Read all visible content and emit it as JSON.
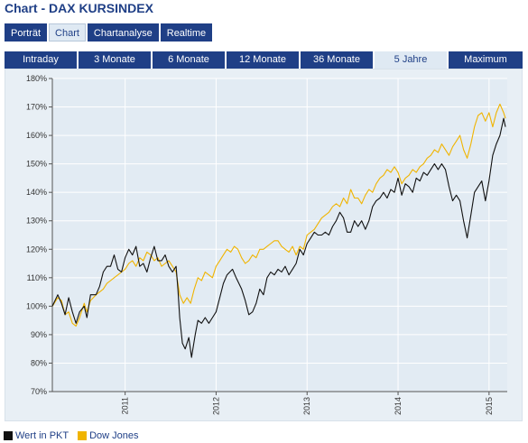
{
  "page": {
    "title": "Chart - DAX KURSINDEX"
  },
  "tabs_main": [
    {
      "label": "Porträt",
      "active": false
    },
    {
      "label": "Chart",
      "active": true
    },
    {
      "label": "Chartanalyse",
      "active": false
    },
    {
      "label": "Realtime",
      "active": false
    }
  ],
  "tabs_range": [
    {
      "label": "Intraday",
      "active": false
    },
    {
      "label": "3 Monate",
      "active": false
    },
    {
      "label": "6 Monate",
      "active": false
    },
    {
      "label": "12 Monate",
      "active": false
    },
    {
      "label": "36 Monate",
      "active": false
    },
    {
      "label": "5 Jahre",
      "active": true
    },
    {
      "label": "Maximum",
      "active": false
    }
  ],
  "legend": [
    {
      "label": "Wert in PKT",
      "color": "#111111"
    },
    {
      "label": "Dow Jones",
      "color": "#f0b400"
    }
  ],
  "chart_data": {
    "type": "line",
    "y_ticks": [
      "70%",
      "80%",
      "90%",
      "100%",
      "110%",
      "120%",
      "130%",
      "140%",
      "150%",
      "160%",
      "170%",
      "180%"
    ],
    "ylim": [
      70,
      180
    ],
    "xlim": [
      2010.2,
      2015.2
    ],
    "x_ticks": [
      {
        "label": "2011",
        "value": 2011
      },
      {
        "label": "2012",
        "value": 2012
      },
      {
        "label": "2013",
        "value": 2013
      },
      {
        "label": "2014",
        "value": 2014
      },
      {
        "label": "2015",
        "value": 2015
      }
    ],
    "grid": true,
    "series": [
      {
        "name": "Wert in PKT",
        "color": "#111111",
        "points": [
          [
            2010.2,
            100
          ],
          [
            2010.26,
            104
          ],
          [
            2010.3,
            101
          ],
          [
            2010.34,
            97
          ],
          [
            2010.38,
            103
          ],
          [
            2010.42,
            98
          ],
          [
            2010.46,
            94
          ],
          [
            2010.5,
            98
          ],
          [
            2010.55,
            100
          ],
          [
            2010.58,
            96
          ],
          [
            2010.62,
            104
          ],
          [
            2010.68,
            104
          ],
          [
            2010.72,
            107
          ],
          [
            2010.76,
            112
          ],
          [
            2010.8,
            114
          ],
          [
            2010.84,
            114
          ],
          [
            2010.88,
            118
          ],
          [
            2010.92,
            113
          ],
          [
            2010.96,
            112
          ],
          [
            2011.0,
            117
          ],
          [
            2011.04,
            120
          ],
          [
            2011.08,
            118
          ],
          [
            2011.12,
            121
          ],
          [
            2011.16,
            114
          ],
          [
            2011.2,
            115
          ],
          [
            2011.24,
            112
          ],
          [
            2011.28,
            117
          ],
          [
            2011.32,
            121
          ],
          [
            2011.36,
            116
          ],
          [
            2011.4,
            116
          ],
          [
            2011.44,
            118
          ],
          [
            2011.48,
            114
          ],
          [
            2011.52,
            112
          ],
          [
            2011.56,
            114
          ],
          [
            2011.58,
            106
          ],
          [
            2011.6,
            96
          ],
          [
            2011.63,
            87
          ],
          [
            2011.66,
            85
          ],
          [
            2011.7,
            89
          ],
          [
            2011.73,
            82
          ],
          [
            2011.77,
            90
          ],
          [
            2011.8,
            95
          ],
          [
            2011.84,
            94
          ],
          [
            2011.88,
            96
          ],
          [
            2011.92,
            94
          ],
          [
            2011.96,
            96
          ],
          [
            2012.0,
            98
          ],
          [
            2012.04,
            103
          ],
          [
            2012.08,
            108
          ],
          [
            2012.12,
            111
          ],
          [
            2012.18,
            113
          ],
          [
            2012.22,
            110
          ],
          [
            2012.28,
            106
          ],
          [
            2012.32,
            102
          ],
          [
            2012.36,
            97
          ],
          [
            2012.4,
            98
          ],
          [
            2012.44,
            101
          ],
          [
            2012.48,
            106
          ],
          [
            2012.52,
            104
          ],
          [
            2012.56,
            110
          ],
          [
            2012.6,
            112
          ],
          [
            2012.64,
            111
          ],
          [
            2012.68,
            113
          ],
          [
            2012.72,
            112
          ],
          [
            2012.76,
            114
          ],
          [
            2012.8,
            111
          ],
          [
            2012.84,
            113
          ],
          [
            2012.88,
            115
          ],
          [
            2012.92,
            120
          ],
          [
            2012.96,
            118
          ],
          [
            2013.0,
            122
          ],
          [
            2013.04,
            124
          ],
          [
            2013.08,
            126
          ],
          [
            2013.12,
            125
          ],
          [
            2013.16,
            125
          ],
          [
            2013.2,
            126
          ],
          [
            2013.24,
            125
          ],
          [
            2013.28,
            128
          ],
          [
            2013.32,
            130
          ],
          [
            2013.36,
            133
          ],
          [
            2013.4,
            131
          ],
          [
            2013.44,
            126
          ],
          [
            2013.48,
            126
          ],
          [
            2013.52,
            130
          ],
          [
            2013.56,
            128
          ],
          [
            2013.6,
            130
          ],
          [
            2013.64,
            127
          ],
          [
            2013.68,
            130
          ],
          [
            2013.72,
            135
          ],
          [
            2013.76,
            137
          ],
          [
            2013.8,
            138
          ],
          [
            2013.84,
            140
          ],
          [
            2013.88,
            138
          ],
          [
            2013.92,
            141
          ],
          [
            2013.96,
            140
          ],
          [
            2014.0,
            145
          ],
          [
            2014.04,
            139
          ],
          [
            2014.08,
            143
          ],
          [
            2014.12,
            142
          ],
          [
            2014.16,
            140
          ],
          [
            2014.2,
            145
          ],
          [
            2014.24,
            144
          ],
          [
            2014.28,
            147
          ],
          [
            2014.32,
            146
          ],
          [
            2014.36,
            148
          ],
          [
            2014.4,
            150
          ],
          [
            2014.44,
            148
          ],
          [
            2014.48,
            150
          ],
          [
            2014.52,
            148
          ],
          [
            2014.56,
            142
          ],
          [
            2014.6,
            137
          ],
          [
            2014.64,
            139
          ],
          [
            2014.68,
            137
          ],
          [
            2014.72,
            130
          ],
          [
            2014.76,
            124
          ],
          [
            2014.8,
            132
          ],
          [
            2014.84,
            140
          ],
          [
            2014.88,
            142
          ],
          [
            2014.92,
            144
          ],
          [
            2014.96,
            137
          ],
          [
            2015.0,
            144
          ],
          [
            2015.04,
            153
          ],
          [
            2015.08,
            157
          ],
          [
            2015.12,
            160
          ],
          [
            2015.16,
            166
          ],
          [
            2015.18,
            163
          ]
        ]
      },
      {
        "name": "Dow Jones",
        "color": "#f0b400",
        "points": [
          [
            2010.2,
            100
          ],
          [
            2010.26,
            103
          ],
          [
            2010.3,
            102
          ],
          [
            2010.34,
            97
          ],
          [
            2010.38,
            98
          ],
          [
            2010.42,
            94
          ],
          [
            2010.46,
            93
          ],
          [
            2010.5,
            96
          ],
          [
            2010.55,
            101
          ],
          [
            2010.58,
            98
          ],
          [
            2010.62,
            102
          ],
          [
            2010.68,
            104
          ],
          [
            2010.72,
            105
          ],
          [
            2010.76,
            106
          ],
          [
            2010.8,
            108
          ],
          [
            2010.84,
            109
          ],
          [
            2010.88,
            110
          ],
          [
            2010.92,
            111
          ],
          [
            2010.96,
            112
          ],
          [
            2011.0,
            113
          ],
          [
            2011.04,
            115
          ],
          [
            2011.08,
            116
          ],
          [
            2011.12,
            114
          ],
          [
            2011.16,
            117
          ],
          [
            2011.2,
            116
          ],
          [
            2011.24,
            119
          ],
          [
            2011.28,
            118
          ],
          [
            2011.32,
            116
          ],
          [
            2011.36,
            117
          ],
          [
            2011.4,
            114
          ],
          [
            2011.44,
            115
          ],
          [
            2011.48,
            116
          ],
          [
            2011.52,
            114
          ],
          [
            2011.56,
            112
          ],
          [
            2011.6,
            104
          ],
          [
            2011.64,
            101
          ],
          [
            2011.68,
            103
          ],
          [
            2011.72,
            101
          ],
          [
            2011.76,
            106
          ],
          [
            2011.8,
            110
          ],
          [
            2011.84,
            109
          ],
          [
            2011.88,
            112
          ],
          [
            2011.92,
            111
          ],
          [
            2011.96,
            110
          ],
          [
            2012.0,
            114
          ],
          [
            2012.04,
            116
          ],
          [
            2012.08,
            118
          ],
          [
            2012.12,
            120
          ],
          [
            2012.16,
            119
          ],
          [
            2012.2,
            121
          ],
          [
            2012.24,
            120
          ],
          [
            2012.28,
            117
          ],
          [
            2012.32,
            115
          ],
          [
            2012.36,
            116
          ],
          [
            2012.4,
            118
          ],
          [
            2012.44,
            117
          ],
          [
            2012.48,
            120
          ],
          [
            2012.52,
            120
          ],
          [
            2012.56,
            121
          ],
          [
            2012.6,
            122
          ],
          [
            2012.64,
            123
          ],
          [
            2012.68,
            123
          ],
          [
            2012.72,
            121
          ],
          [
            2012.76,
            120
          ],
          [
            2012.8,
            119
          ],
          [
            2012.84,
            121
          ],
          [
            2012.88,
            118
          ],
          [
            2012.92,
            121
          ],
          [
            2012.96,
            120
          ],
          [
            2013.0,
            125
          ],
          [
            2013.04,
            126
          ],
          [
            2013.08,
            127
          ],
          [
            2013.12,
            129
          ],
          [
            2013.16,
            131
          ],
          [
            2013.2,
            132
          ],
          [
            2013.24,
            133
          ],
          [
            2013.28,
            135
          ],
          [
            2013.32,
            136
          ],
          [
            2013.36,
            135
          ],
          [
            2013.4,
            138
          ],
          [
            2013.44,
            136
          ],
          [
            2013.48,
            141
          ],
          [
            2013.52,
            138
          ],
          [
            2013.56,
            138
          ],
          [
            2013.6,
            136
          ],
          [
            2013.64,
            139
          ],
          [
            2013.68,
            141
          ],
          [
            2013.72,
            140
          ],
          [
            2013.76,
            143
          ],
          [
            2013.8,
            145
          ],
          [
            2013.84,
            146
          ],
          [
            2013.88,
            148
          ],
          [
            2013.92,
            147
          ],
          [
            2013.96,
            149
          ],
          [
            2014.0,
            147
          ],
          [
            2014.04,
            143
          ],
          [
            2014.08,
            145
          ],
          [
            2014.12,
            146
          ],
          [
            2014.16,
            148
          ],
          [
            2014.2,
            147
          ],
          [
            2014.24,
            149
          ],
          [
            2014.28,
            150
          ],
          [
            2014.32,
            152
          ],
          [
            2014.36,
            153
          ],
          [
            2014.4,
            155
          ],
          [
            2014.44,
            154
          ],
          [
            2014.48,
            157
          ],
          [
            2014.52,
            155
          ],
          [
            2014.56,
            153
          ],
          [
            2014.6,
            156
          ],
          [
            2014.64,
            158
          ],
          [
            2014.68,
            160
          ],
          [
            2014.72,
            155
          ],
          [
            2014.76,
            152
          ],
          [
            2014.8,
            157
          ],
          [
            2014.84,
            163
          ],
          [
            2014.88,
            167
          ],
          [
            2014.92,
            168
          ],
          [
            2014.96,
            165
          ],
          [
            2015.0,
            168
          ],
          [
            2015.04,
            163
          ],
          [
            2015.08,
            168
          ],
          [
            2015.12,
            171
          ],
          [
            2015.16,
            168
          ],
          [
            2015.18,
            166
          ]
        ]
      }
    ]
  }
}
